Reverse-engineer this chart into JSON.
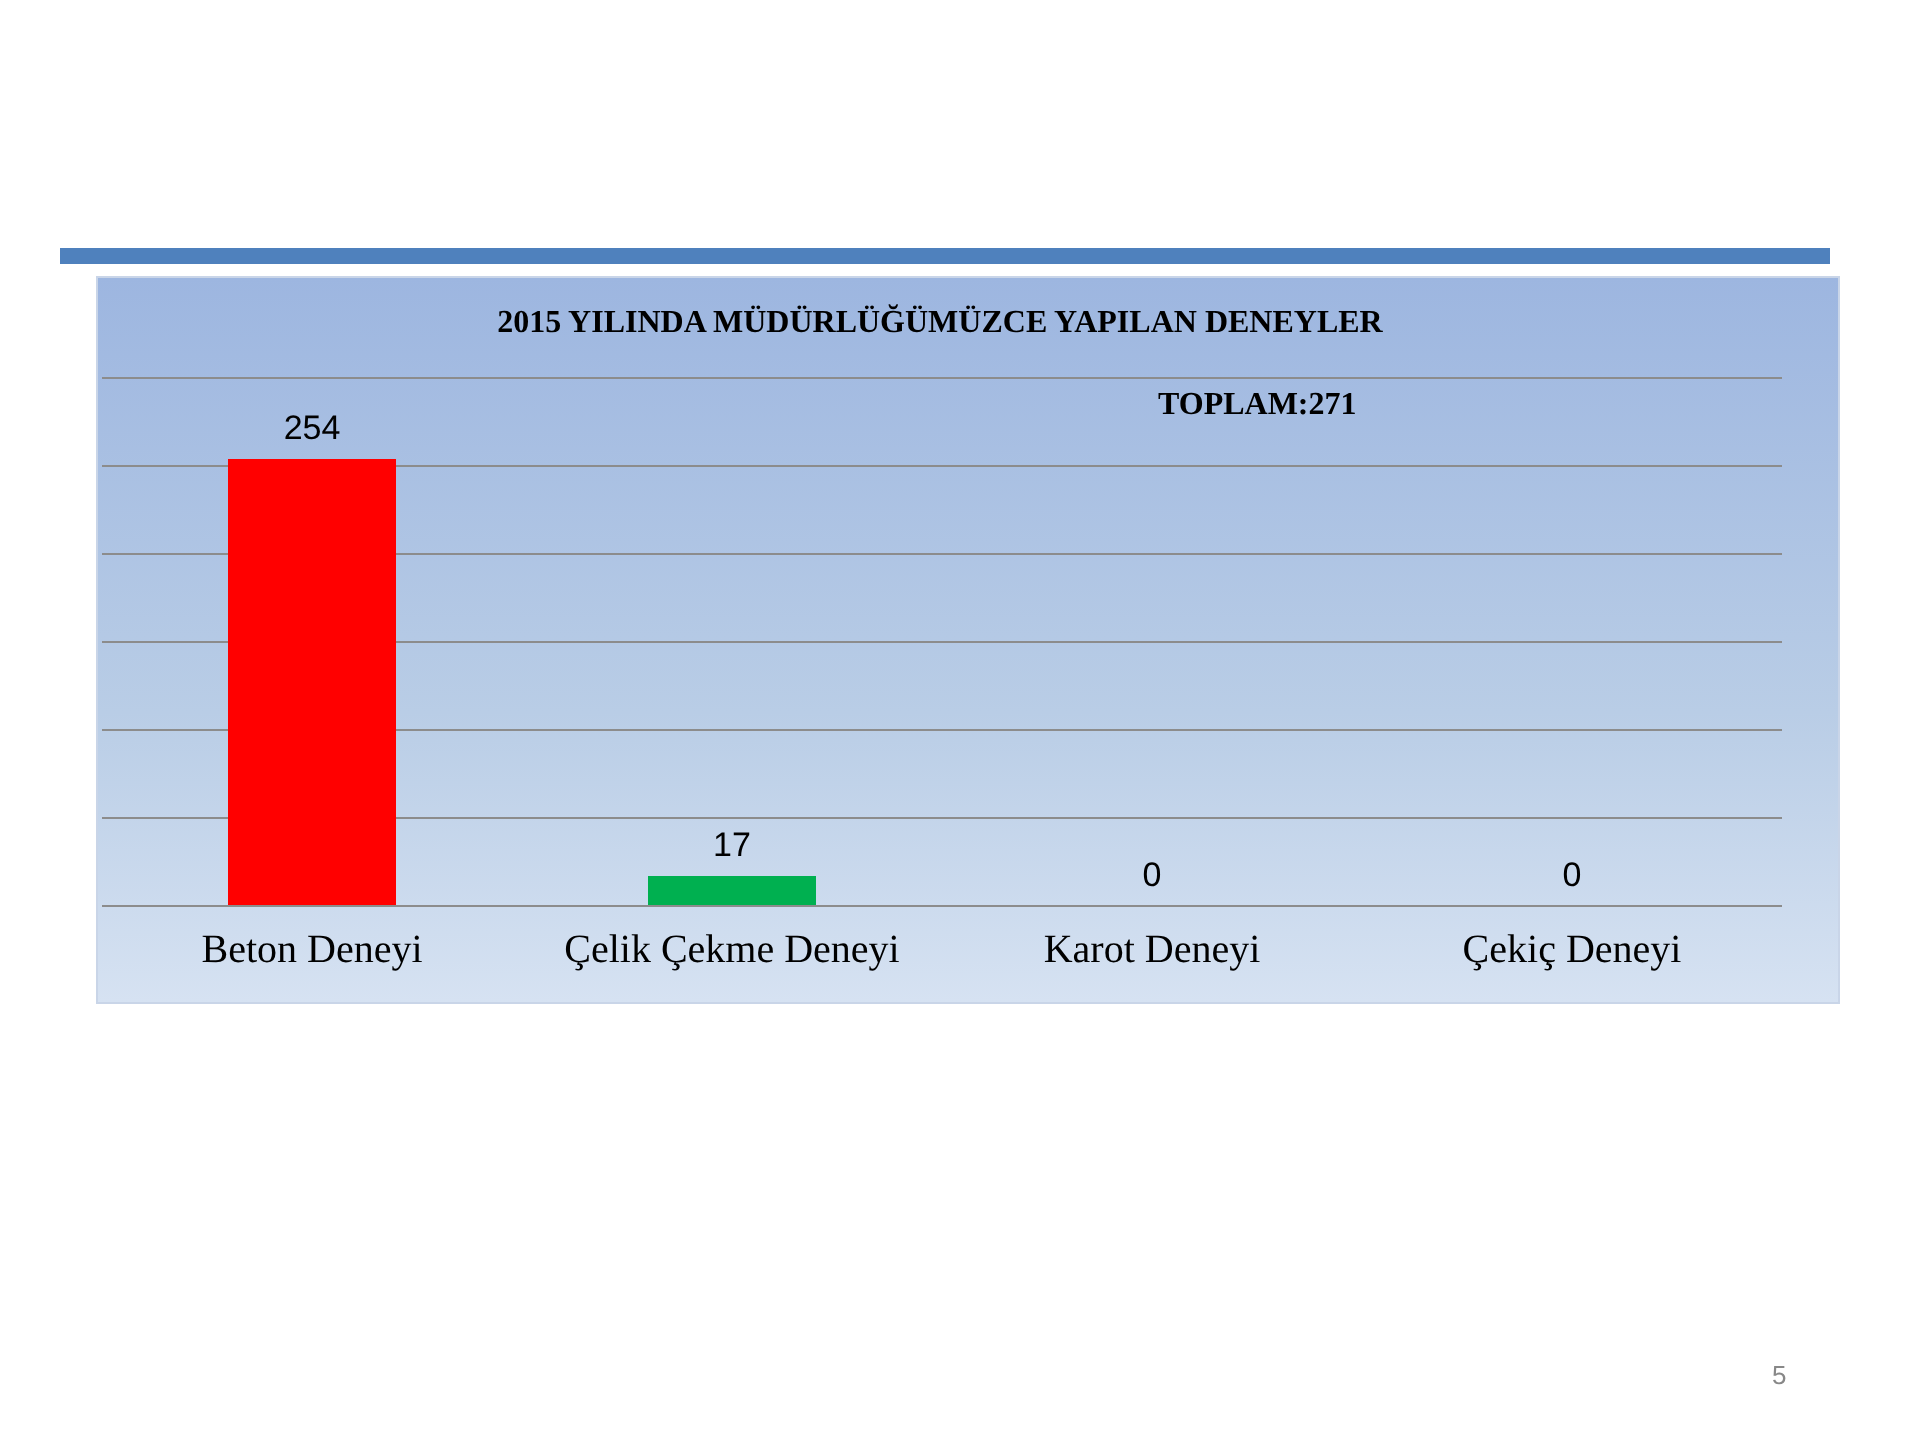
{
  "chart_data": {
    "type": "bar",
    "title": "2015 YILINDA  MÜDÜRLÜĞÜMÜZCE  YAPILAN  DENEYLER",
    "categories": [
      "Beton Deneyi",
      "Çelik Çekme Deneyi",
      "Karot Deneyi",
      "Çekiç Deneyi"
    ],
    "values": [
      254,
      17,
      0,
      0
    ],
    "colors": [
      "#ff0000",
      "#00b050",
      "#4f81bd",
      "#4f81bd"
    ],
    "data_labels": true,
    "ylim": [
      0,
      300
    ],
    "yticks": [
      {
        "value": 0,
        "label": null
      },
      {
        "value": 50,
        "label": null
      },
      {
        "value": 100,
        "label": null
      },
      {
        "value": 150,
        "label": null
      },
      {
        "value": 200,
        "label": null
      },
      {
        "value": 250,
        "label": null
      },
      {
        "value": 300,
        "label": null
      }
    ],
    "tick_labels": "x",
    "grid": "y",
    "legend": false,
    "annotations": [
      "TOPLAM:271",
      "5"
    ]
  }
}
